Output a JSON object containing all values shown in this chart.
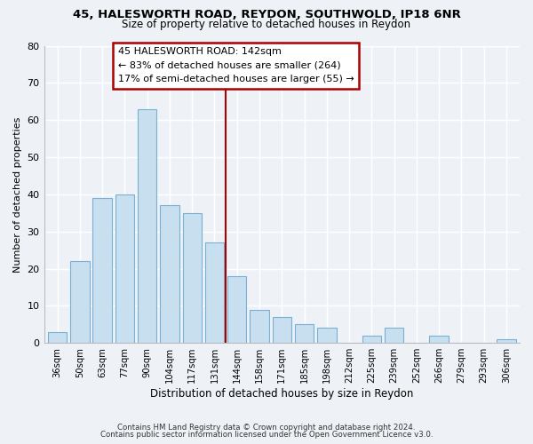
{
  "title1": "45, HALESWORTH ROAD, REYDON, SOUTHWOLD, IP18 6NR",
  "title2": "Size of property relative to detached houses in Reydon",
  "xlabel": "Distribution of detached houses by size in Reydon",
  "ylabel": "Number of detached properties",
  "bar_labels": [
    "36sqm",
    "50sqm",
    "63sqm",
    "77sqm",
    "90sqm",
    "104sqm",
    "117sqm",
    "131sqm",
    "144sqm",
    "158sqm",
    "171sqm",
    "185sqm",
    "198sqm",
    "212sqm",
    "225sqm",
    "239sqm",
    "252sqm",
    "266sqm",
    "279sqm",
    "293sqm",
    "306sqm"
  ],
  "bar_values": [
    3,
    22,
    39,
    40,
    63,
    37,
    35,
    27,
    18,
    9,
    7,
    5,
    4,
    0,
    2,
    4,
    0,
    2,
    0,
    0,
    1
  ],
  "bar_color": "#c8dff0",
  "bar_edge_color": "#7aafd4",
  "vline_color": "#aa0000",
  "annotation_title": "45 HALESWORTH ROAD: 142sqm",
  "annotation_line1": "← 83% of detached houses are smaller (264)",
  "annotation_line2": "17% of semi-detached houses are larger (55) →",
  "box_edge_color": "#aa0000",
  "ylim": [
    0,
    80
  ],
  "yticks": [
    0,
    10,
    20,
    30,
    40,
    50,
    60,
    70,
    80
  ],
  "footer1": "Contains HM Land Registry data © Crown copyright and database right 2024.",
  "footer2": "Contains public sector information licensed under the Open Government Licence v3.0.",
  "bg_color": "#eef2f7"
}
